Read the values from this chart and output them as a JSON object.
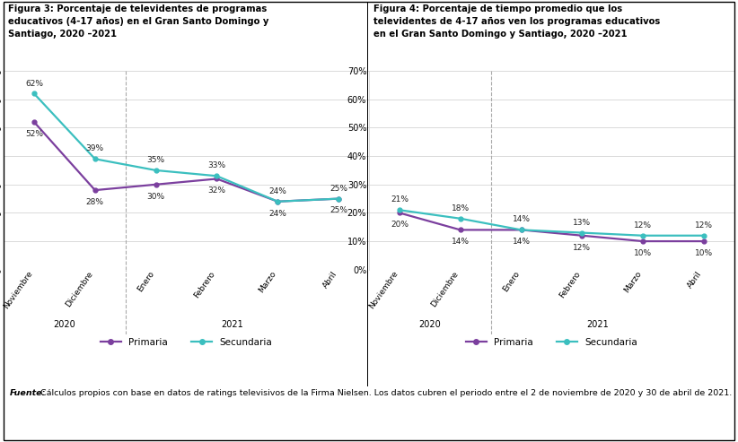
{
  "fig3_title": "Figura 3: Porcentaje de televidentes de programas\neducativos (4-17 años) en el Gran Santo Domingo y\nSantiago, 2020 –2021",
  "fig4_title": "Figura 4: Porcentaje de tiempo promedio que los\ntelevidentes de 4-17 años ven los programas educativos\nen el Gran Santo Domingo y Santiago, 2020 –2021",
  "categories": [
    "Noviembre",
    "Diciembre",
    "Enero",
    "Febrero",
    "Marzo",
    "Abril"
  ],
  "fig3_primaria": [
    0.52,
    0.28,
    0.3,
    0.32,
    0.24,
    0.25
  ],
  "fig3_secundaria": [
    0.62,
    0.39,
    0.35,
    0.33,
    0.24,
    0.25
  ],
  "fig4_primaria": [
    0.2,
    0.14,
    0.14,
    0.12,
    0.1,
    0.1
  ],
  "fig4_secundaria": [
    0.21,
    0.18,
    0.14,
    0.13,
    0.12,
    0.12
  ],
  "primaria_color": "#7B3F9E",
  "secundaria_color": "#3BBFBF",
  "ylim": [
    0,
    0.7
  ],
  "yticks": [
    0.0,
    0.1,
    0.2,
    0.3,
    0.4,
    0.5,
    0.6,
    0.7
  ],
  "legend_primaria": "Primaria",
  "legend_secundaria": "Secundaria",
  "footer_italic": "Fuente:",
  "footer_rest": " Cálculos propios con base en datos de ratings televisivos de la Firma Nielsen. Los datos cubren el periodo entre el 2 de noviembre de 2020 y 30 de abril de 2021.",
  "panel_bg": "#dce6f0",
  "white": "#ffffff",
  "black": "#000000",
  "grid_color": "#cccccc",
  "dash_color": "#aaaaaa"
}
